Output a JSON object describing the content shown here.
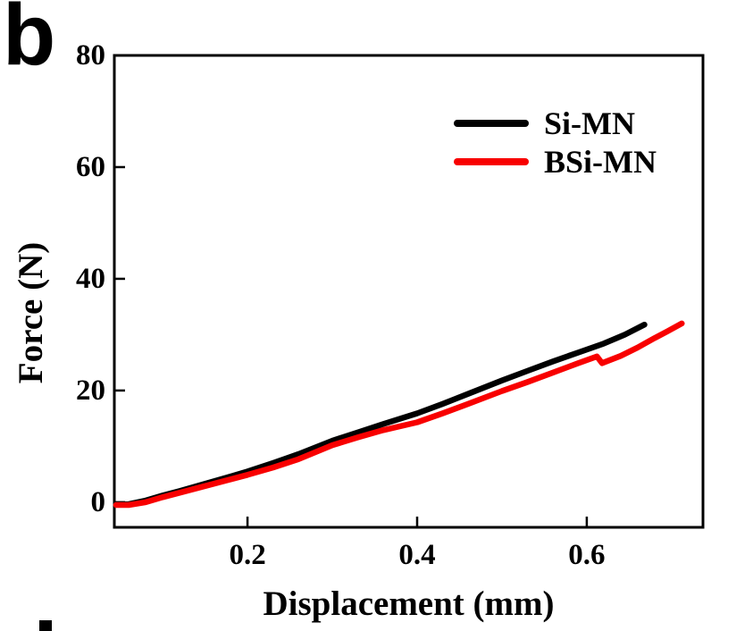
{
  "panel_label": "b",
  "colors": {
    "axis": "#000000",
    "series_black": "#000000",
    "series_red": "#f80000",
    "background": "#ffffff"
  },
  "chart_data": {
    "type": "line",
    "title": "",
    "xlabel": "Displacement (mm)",
    "ylabel": "Force (N)",
    "xlim": [
      0.043,
      0.737
    ],
    "ylim": [
      -4.5,
      80
    ],
    "xticks": [
      {
        "v": 0.2,
        "label": "0.2"
      },
      {
        "v": 0.4,
        "label": "0.4"
      },
      {
        "v": 0.6,
        "label": "0.6"
      }
    ],
    "yticks": [
      {
        "v": 0,
        "label": "0"
      },
      {
        "v": 20,
        "label": "20"
      },
      {
        "v": 40,
        "label": "40"
      },
      {
        "v": 60,
        "label": "60"
      },
      {
        "v": 80,
        "label": "80"
      }
    ],
    "grid": false,
    "legend_position": "upper-right-inside",
    "series": [
      {
        "name": "Si-MN",
        "color": "#000000",
        "points": [
          [
            0.045,
            -0.4
          ],
          [
            0.06,
            -0.35
          ],
          [
            0.08,
            0.3
          ],
          [
            0.1,
            1.2
          ],
          [
            0.12,
            2.0
          ],
          [
            0.15,
            3.3
          ],
          [
            0.18,
            4.6
          ],
          [
            0.2,
            5.5
          ],
          [
            0.23,
            7.0
          ],
          [
            0.26,
            8.6
          ],
          [
            0.3,
            11.0
          ],
          [
            0.33,
            12.5
          ],
          [
            0.36,
            14.0
          ],
          [
            0.4,
            15.9
          ],
          [
            0.43,
            17.6
          ],
          [
            0.46,
            19.4
          ],
          [
            0.5,
            21.8
          ],
          [
            0.53,
            23.5
          ],
          [
            0.56,
            25.2
          ],
          [
            0.59,
            26.8
          ],
          [
            0.62,
            28.4
          ],
          [
            0.645,
            30.0
          ],
          [
            0.668,
            31.8
          ]
        ]
      },
      {
        "name": "BSi-MN",
        "color": "#f80000",
        "points": [
          [
            0.045,
            -0.5
          ],
          [
            0.06,
            -0.5
          ],
          [
            0.08,
            0.0
          ],
          [
            0.1,
            0.9
          ],
          [
            0.12,
            1.7
          ],
          [
            0.15,
            2.9
          ],
          [
            0.18,
            4.1
          ],
          [
            0.2,
            4.9
          ],
          [
            0.23,
            6.2
          ],
          [
            0.26,
            7.7
          ],
          [
            0.3,
            10.2
          ],
          [
            0.33,
            11.6
          ],
          [
            0.36,
            12.9
          ],
          [
            0.4,
            14.3
          ],
          [
            0.43,
            15.9
          ],
          [
            0.46,
            17.6
          ],
          [
            0.5,
            19.9
          ],
          [
            0.53,
            21.5
          ],
          [
            0.56,
            23.2
          ],
          [
            0.59,
            24.9
          ],
          [
            0.612,
            26.1
          ],
          [
            0.618,
            24.9
          ],
          [
            0.64,
            26.2
          ],
          [
            0.66,
            27.7
          ],
          [
            0.68,
            29.4
          ],
          [
            0.695,
            30.6
          ],
          [
            0.712,
            32.0
          ]
        ]
      }
    ]
  }
}
